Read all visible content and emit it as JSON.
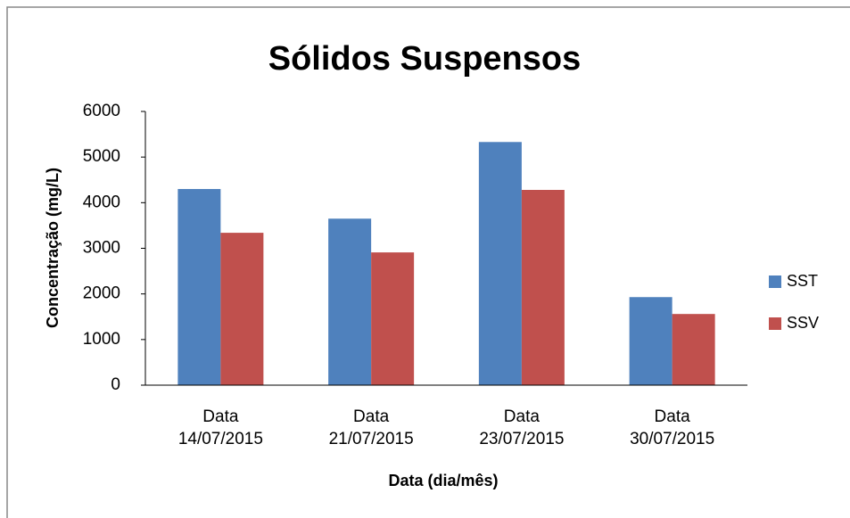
{
  "chart_data": {
    "type": "bar",
    "title": "Sólidos Suspensos",
    "x_label": "Data (dia/mês)",
    "y_label": "Concentração (mg/L)",
    "categories": [
      "Data 14/07/2015",
      "Data 21/07/2015",
      "Data 23/07/2015",
      "Data 30/07/2015"
    ],
    "series": [
      {
        "name": "SST",
        "color": "#4f81bd",
        "values": [
          4300,
          3650,
          5330,
          1930
        ]
      },
      {
        "name": "SSV",
        "color": "#c0504d",
        "values": [
          3340,
          2910,
          4280,
          1560
        ]
      }
    ],
    "ylim": [
      0,
      6000
    ],
    "yticks": [
      0,
      1000,
      2000,
      3000,
      4000,
      5000,
      6000
    ],
    "grid": false,
    "legend": "right"
  }
}
